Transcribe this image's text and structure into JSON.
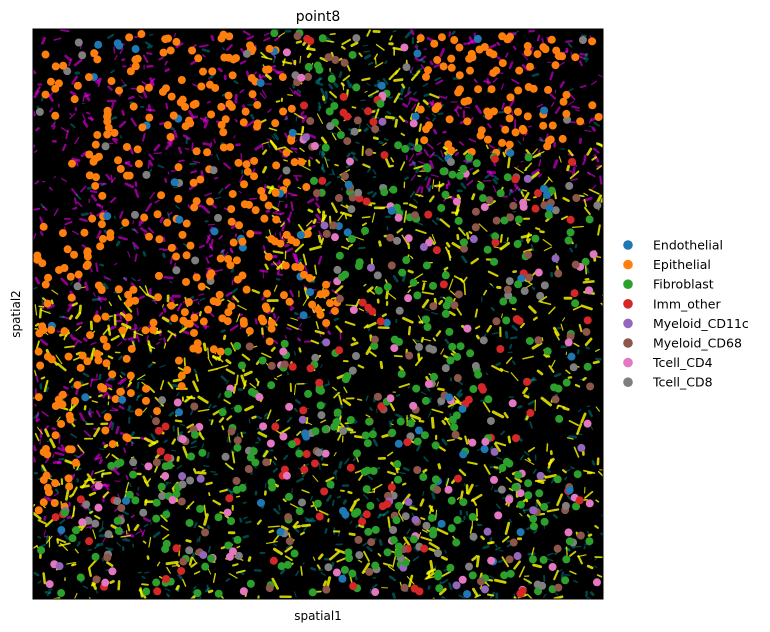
{
  "chart_data": {
    "type": "scatter",
    "title": "point8",
    "xlabel": "spatial1",
    "ylabel": "spatial2",
    "xticks": [],
    "yticks": [],
    "background": "#000000",
    "legend": {
      "position": "right",
      "entries": [
        {
          "name": "Endothelial",
          "color": "#1f77b4"
        },
        {
          "name": "Epithelial",
          "color": "#ff7f0e"
        },
        {
          "name": "Fibroblast",
          "color": "#2ca02c"
        },
        {
          "name": "Imm_other",
          "color": "#d62728"
        },
        {
          "name": "Myeloid_CD11c",
          "color": "#9467bd"
        },
        {
          "name": "Myeloid_CD68",
          "color": "#8c564b"
        },
        {
          "name": "Tcell_CD4",
          "color": "#e377c2"
        },
        {
          "name": "Tcell_CD8",
          "color": "#7f7f7f"
        }
      ]
    },
    "image_channels": [
      {
        "marker_color": "#ff00ff"
      },
      {
        "marker_color": "#ffff00"
      },
      {
        "marker_color": "#00c8c8"
      }
    ]
  }
}
